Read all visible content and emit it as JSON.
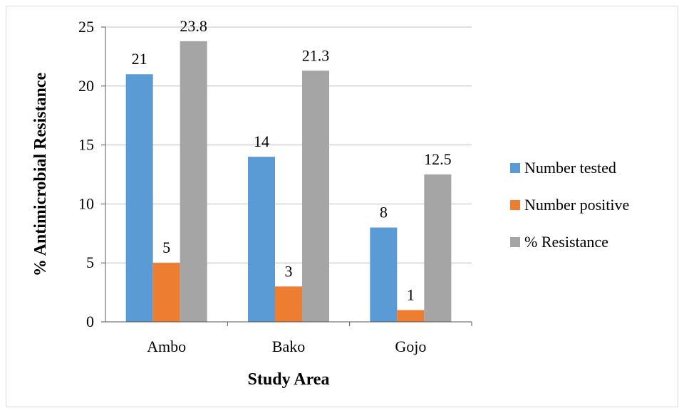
{
  "chart_data": {
    "type": "bar",
    "xlabel": "Study Area",
    "ylabel": "% Antimicrobial Resistance",
    "categories": [
      "Ambo",
      "Bako",
      "Gojo"
    ],
    "series": [
      {
        "name": "Number tested",
        "color": "#5b9bd5",
        "values": [
          21,
          14,
          8
        ]
      },
      {
        "name": "Number positive",
        "color": "#ed7d31",
        "values": [
          5,
          3,
          1
        ]
      },
      {
        "name": "% Resistance",
        "color": "#a5a5a5",
        "values": [
          23.8,
          21.3,
          12.5
        ]
      }
    ],
    "ylim": [
      0,
      25
    ],
    "yticks": [
      0,
      5,
      10,
      15,
      20,
      25
    ],
    "grid": true,
    "legend": "right",
    "data_labels": true
  }
}
